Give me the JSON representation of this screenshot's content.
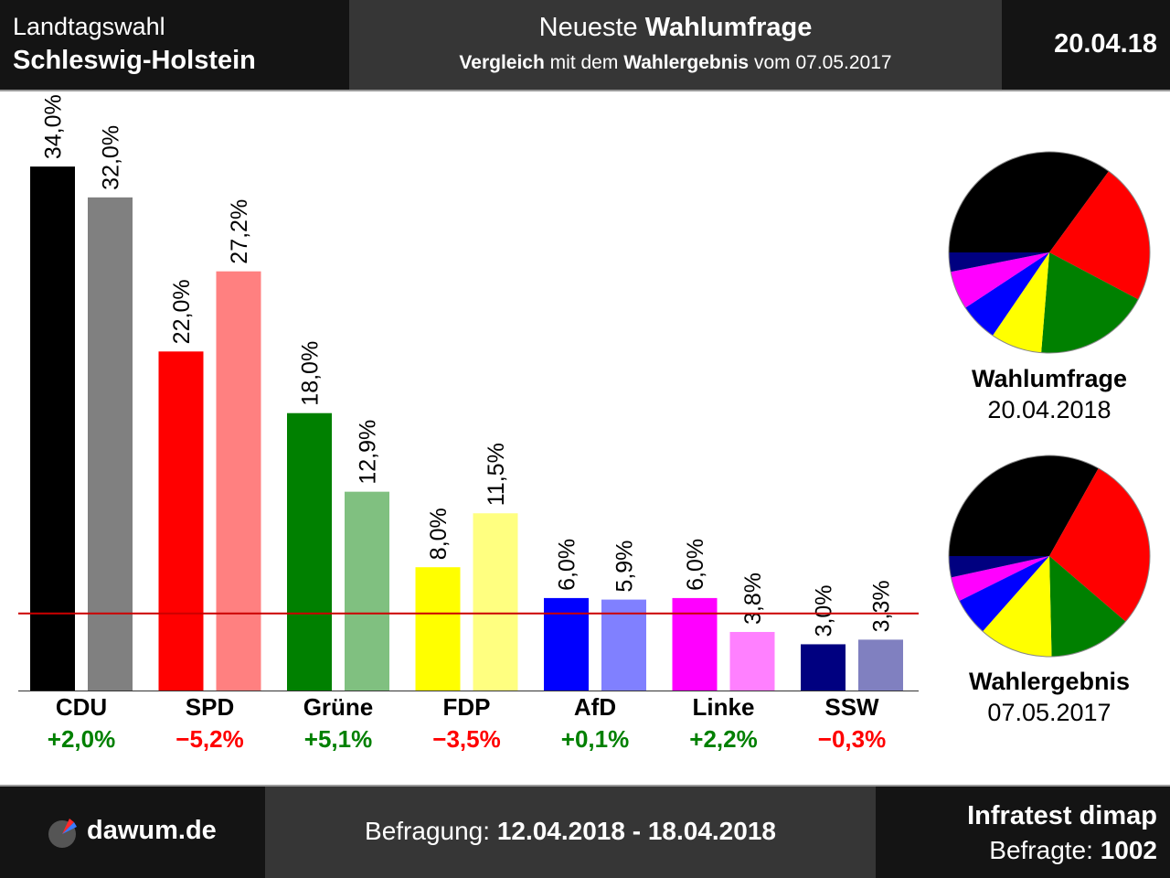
{
  "header": {
    "left_line1": "Landtagswahl",
    "left_line2": "Schleswig-Holstein",
    "mid_line1_plain": "Neueste",
    "mid_line1_bold": "Wahlumfrage",
    "mid_line2_bold1": "Vergleich",
    "mid_line2_plain1": "mit dem",
    "mid_line2_bold2": "Wahlergebnis",
    "mid_line2_plain2": "vom 07.05.2017",
    "date": "20.04.18"
  },
  "footer": {
    "logo_text": "dawum.de",
    "survey_label": "Befragung:",
    "survey_period": "12.04.2018 - 18.04.2018",
    "institute": "Infratest dimap",
    "respondents_label": "Befragte:",
    "respondents_value": "1002"
  },
  "chart_data": [
    {
      "type": "bar",
      "categories": [
        "CDU",
        "SPD",
        "Grüne",
        "FDP",
        "AfD",
        "Linke",
        "SSW"
      ],
      "series": [
        {
          "name": "Wahlumfrage",
          "values": [
            34.0,
            22.0,
            18.0,
            8.0,
            6.0,
            6.0,
            3.0
          ],
          "labels": [
            "34,0%",
            "22,0%",
            "18,0%",
            "8,0%",
            "6,0%",
            "6,0%",
            "3,0%"
          ],
          "colors": [
            "#000000",
            "#ff0000",
            "#008000",
            "#ffff00",
            "#0000ff",
            "#ff00ff",
            "#000080"
          ]
        },
        {
          "name": "Wahlergebnis",
          "values": [
            32.0,
            27.2,
            12.9,
            11.5,
            5.9,
            3.8,
            3.3
          ],
          "labels": [
            "32,0%",
            "27,2%",
            "12,9%",
            "11,5%",
            "5,9%",
            "3,8%",
            "3,3%"
          ],
          "colors": [
            "#808080",
            "#ff8080",
            "#80c080",
            "#ffff80",
            "#8080ff",
            "#ff80ff",
            "#8080c0"
          ]
        }
      ],
      "differences": [
        "+2,0%",
        "−5,2%",
        "+5,1%",
        "−3,5%",
        "+0,1%",
        "+2,2%",
        "−0,3%"
      ],
      "difference_colors": [
        "#008000",
        "#ff0000",
        "#008000",
        "#ff0000",
        "#008000",
        "#008000",
        "#ff0000"
      ],
      "threshold": 5,
      "threshold_color": "#cc0000",
      "ylim": [
        0,
        36.5
      ]
    },
    {
      "type": "pie",
      "title": "Wahlumfrage",
      "subtitle": "20.04.2018",
      "slices": [
        {
          "label": "CDU",
          "value": 34.0,
          "color": "#000000"
        },
        {
          "label": "SPD",
          "value": 22.0,
          "color": "#ff0000"
        },
        {
          "label": "Grüne",
          "value": 18.0,
          "color": "#008000"
        },
        {
          "label": "FDP",
          "value": 8.0,
          "color": "#ffff00"
        },
        {
          "label": "AfD",
          "value": 6.0,
          "color": "#0000ff"
        },
        {
          "label": "Linke",
          "value": 6.0,
          "color": "#ff00ff"
        },
        {
          "label": "SSW",
          "value": 3.0,
          "color": "#000080"
        }
      ]
    },
    {
      "type": "pie",
      "title": "Wahlergebnis",
      "subtitle": "07.05.2017",
      "slices": [
        {
          "label": "CDU",
          "value": 32.0,
          "color": "#000000"
        },
        {
          "label": "SPD",
          "value": 27.2,
          "color": "#ff0000"
        },
        {
          "label": "Grüne",
          "value": 12.9,
          "color": "#008000"
        },
        {
          "label": "FDP",
          "value": 11.5,
          "color": "#ffff00"
        },
        {
          "label": "AfD",
          "value": 5.9,
          "color": "#0000ff"
        },
        {
          "label": "Linke",
          "value": 3.8,
          "color": "#ff00ff"
        },
        {
          "label": "SSW",
          "value": 3.3,
          "color": "#000080"
        }
      ]
    }
  ]
}
